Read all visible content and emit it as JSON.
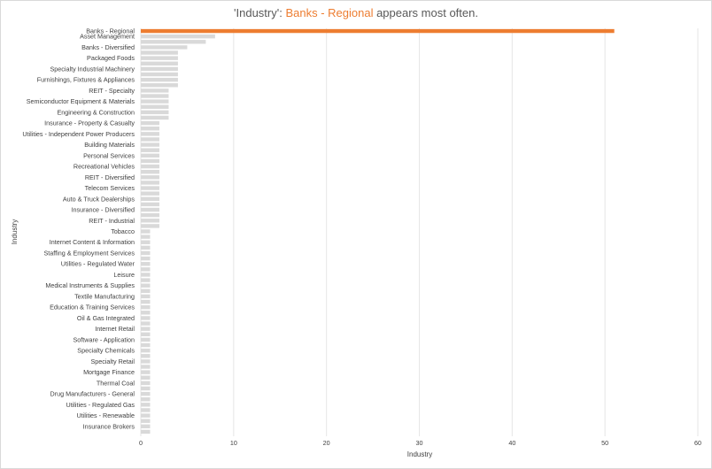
{
  "title": {
    "prefix": "'Industry': ",
    "highlight": "Banks - Regional",
    "suffix": " appears most often."
  },
  "colors": {
    "highlight": "#ed7d31",
    "bar": "#d9d9d9",
    "grid": "#e6e6e6",
    "text": "#404040"
  },
  "chart_data": {
    "type": "bar",
    "orientation": "horizontal",
    "xlabel": "Industry",
    "ylabel": "Industry",
    "xlim": [
      0,
      60
    ],
    "xticks": [
      0,
      10,
      20,
      30,
      40,
      50,
      60
    ],
    "grid": true,
    "categories": [
      "Banks - Regional",
      "Asset Management",
      "",
      "Banks - Diversified",
      "",
      "Packaged Foods",
      "",
      "Specialty Industrial Machinery",
      "",
      "Furnishings, Fixtures & Appliances",
      "",
      "REIT - Specialty",
      "",
      "Semiconductor Equipment & Materials",
      "",
      "Engineering & Construction",
      "",
      "Insurance - Property & Casualty",
      "",
      "Utilities - Independent Power Producers",
      "",
      "Building Materials",
      "",
      "Personal Services",
      "",
      "Recreational Vehicles",
      "",
      "REIT - Diversified",
      "",
      "Telecom Services",
      "",
      "Auto & Truck Dealerships",
      "",
      "Insurance - Diversified",
      "",
      "REIT - Industrial",
      "",
      "Tobacco",
      "",
      "Internet Content & Information",
      "",
      "Staffing & Employment Services",
      "",
      "Utilities - Regulated Water",
      "",
      "Leisure",
      "",
      "Medical Instruments & Supplies",
      "",
      "Textile Manufacturing",
      "",
      "Education & Training Services",
      "",
      "Oil & Gas Integrated",
      "",
      "Internet Retail",
      "",
      "Software - Application",
      "",
      "Specialty Chemicals",
      "",
      "Specialty Retail",
      "",
      "Mortgage Finance",
      "",
      "Thermal Coal",
      "",
      "Drug Manufacturers - General",
      "",
      "Utilities - Regulated Gas",
      "",
      "Utilities - Renewable",
      "",
      "Insurance Brokers",
      ""
    ],
    "values": [
      51,
      8,
      7,
      5,
      4,
      4,
      4,
      4,
      4,
      4,
      4,
      3,
      3,
      3,
      3,
      3,
      3,
      2,
      2,
      2,
      2,
      2,
      2,
      2,
      2,
      2,
      2,
      2,
      2,
      2,
      2,
      2,
      2,
      2,
      2,
      2,
      2,
      1,
      1,
      1,
      1,
      1,
      1,
      1,
      1,
      1,
      1,
      1,
      1,
      1,
      1,
      1,
      1,
      1,
      1,
      1,
      1,
      1,
      1,
      1,
      1,
      1,
      1,
      1,
      1,
      1,
      1,
      1,
      1,
      1,
      1,
      1,
      1,
      1,
      1
    ],
    "highlight_index": 0
  }
}
